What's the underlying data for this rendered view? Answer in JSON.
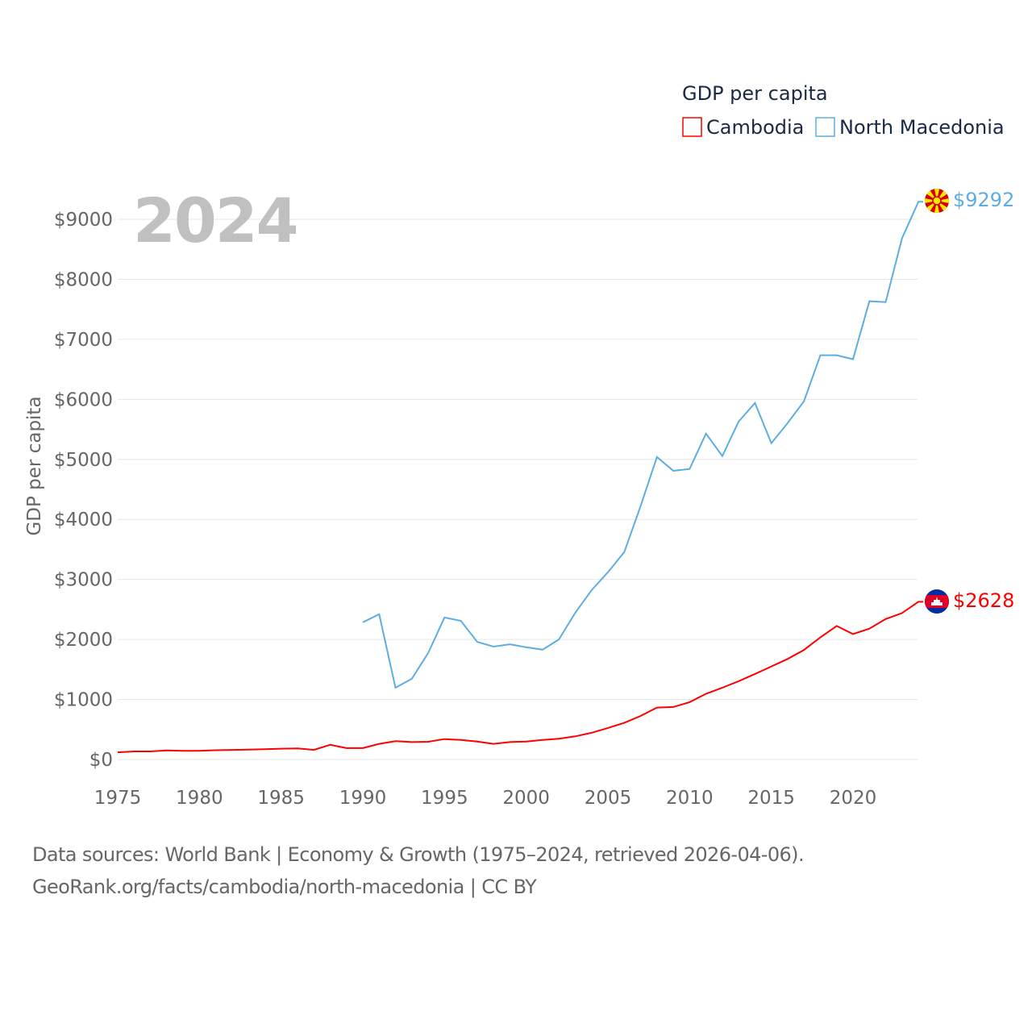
{
  "chart_data": {
    "type": "line",
    "title": "GDP per capita",
    "year_label": "2024",
    "xlabel": "",
    "ylabel": "GDP per capita",
    "xlim": [
      1975,
      2024
    ],
    "ylim": [
      0,
      9500
    ],
    "x_ticks": [
      1975,
      1980,
      1985,
      1990,
      1995,
      2000,
      2005,
      2010,
      2015,
      2020
    ],
    "y_ticks": [
      0,
      1000,
      2000,
      3000,
      4000,
      5000,
      6000,
      7000,
      8000,
      9000
    ],
    "y_tick_labels": [
      "$0",
      "$1000",
      "$2000",
      "$3000",
      "$4000",
      "$5000",
      "$6000",
      "$7000",
      "$8000",
      "$9000"
    ],
    "grid": true,
    "legend_position": "top-right",
    "series": [
      {
        "name": "Cambodia",
        "color": "#ff0000",
        "end_label": "$2628",
        "flag": "cambodia-flag",
        "x": [
          1975,
          1976,
          1977,
          1978,
          1979,
          1980,
          1981,
          1982,
          1983,
          1984,
          1985,
          1986,
          1987,
          1988,
          1989,
          1990,
          1991,
          1992,
          1993,
          1994,
          1995,
          1996,
          1997,
          1998,
          1999,
          2000,
          2001,
          2002,
          2003,
          2004,
          2005,
          2006,
          2007,
          2008,
          2009,
          2010,
          2011,
          2012,
          2013,
          2014,
          2015,
          2016,
          2017,
          2018,
          2019,
          2020,
          2021,
          2022,
          2023,
          2024
        ],
        "values": [
          120,
          135,
          135,
          150,
          145,
          145,
          155,
          160,
          165,
          170,
          180,
          185,
          160,
          245,
          190,
          190,
          260,
          305,
          290,
          295,
          340,
          325,
          300,
          260,
          290,
          300,
          325,
          345,
          385,
          445,
          525,
          610,
          725,
          865,
          875,
          955,
          1095,
          1195,
          1305,
          1425,
          1550,
          1675,
          1825,
          2035,
          2225,
          2090,
          2180,
          2340,
          2440,
          2628
        ]
      },
      {
        "name": "North Macedonia",
        "color": "#5dade2",
        "end_label": "$9292",
        "flag": "north-macedonia-flag",
        "x": [
          1990,
          1991,
          1992,
          1993,
          1994,
          1995,
          1996,
          1997,
          1998,
          1999,
          2000,
          2001,
          2002,
          2003,
          2004,
          2005,
          2006,
          2007,
          2008,
          2009,
          2010,
          2011,
          2012,
          2013,
          2014,
          2015,
          2016,
          2017,
          2018,
          2019,
          2020,
          2021,
          2022,
          2023,
          2024
        ],
        "values": [
          2285,
          2420,
          1195,
          1345,
          1775,
          2365,
          2310,
          1960,
          1880,
          1920,
          1870,
          1830,
          2000,
          2445,
          2820,
          3120,
          3455,
          4220,
          5040,
          4810,
          4840,
          5430,
          5055,
          5630,
          5940,
          5270,
          5605,
          5970,
          6735,
          6735,
          6670,
          7635,
          7620,
          8685,
          9292
        ]
      }
    ]
  },
  "footer": {
    "line1": "Data sources: World Bank | Economy & Growth (1975–2024, retrieved 2026-04-06).",
    "line2": "GeoRank.org/facts/cambodia/north-macedonia | CC BY"
  }
}
